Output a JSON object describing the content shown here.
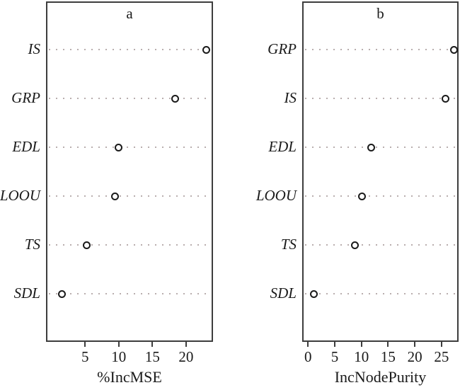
{
  "chart_data": [
    {
      "type": "scatter",
      "subtype": "dot-plot",
      "title": "a",
      "xlabel": "%IncMSE",
      "categories": [
        "IS",
        "GRP",
        "EDL",
        "LOOU",
        "TS",
        "SDL"
      ],
      "values": [
        23.0,
        18.4,
        10.0,
        9.4,
        5.2,
        1.6
      ],
      "xticks": [
        5,
        10,
        15,
        20
      ],
      "xlim": [
        -0.8,
        24.0
      ],
      "grid": "dotted-horizontal",
      "legend": "none"
    },
    {
      "type": "scatter",
      "subtype": "dot-plot",
      "title": "b",
      "xlabel": "IncNodePurity",
      "categories": [
        "GRP",
        "IS",
        "EDL",
        "LOOU",
        "TS",
        "SDL"
      ],
      "values": [
        27.3,
        25.8,
        11.8,
        10.1,
        8.8,
        1.1
      ],
      "xticks": [
        0,
        5,
        10,
        15,
        20,
        25
      ],
      "xlim": [
        -1.1,
        28.2
      ],
      "grid": "dotted-horizontal",
      "legend": "none"
    }
  ],
  "style": {
    "background": "#ffffff",
    "text_color": "#1a1a1a",
    "box_border_color": "#3d3d3d",
    "grid_line_color": "#b9aeae",
    "point_stroke_color": "#1a1a1a",
    "point_fill": "#ffffff"
  }
}
